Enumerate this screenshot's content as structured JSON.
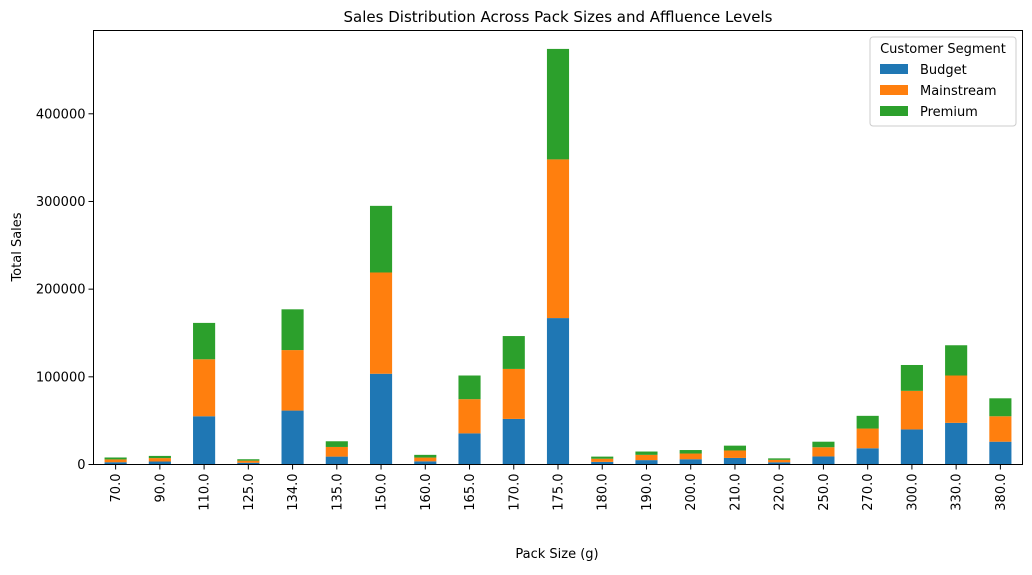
{
  "chart_data": {
    "type": "bar",
    "stacked": true,
    "title": "Sales Distribution Across Pack Sizes and Affluence Levels",
    "xlabel": "Pack Size (g)",
    "ylabel": "Total Sales",
    "ylim": [
      0,
      495000
    ],
    "yticks": [
      "0",
      "100000",
      "200000",
      "300000",
      "400000"
    ],
    "categories": [
      "70.0",
      "90.0",
      "110.0",
      "125.0",
      "134.0",
      "135.0",
      "150.0",
      "160.0",
      "165.0",
      "170.0",
      "175.0",
      "180.0",
      "190.0",
      "200.0",
      "210.0",
      "220.0",
      "250.0",
      "270.0",
      "300.0",
      "330.0",
      "380.0"
    ],
    "series": [
      {
        "name": "Budget",
        "color": "#1f77b4",
        "values": [
          2600,
          3400,
          55000,
          2000,
          61500,
          9000,
          103500,
          3600,
          35500,
          52000,
          167000,
          3000,
          5000,
          6000,
          7500,
          2500,
          9200,
          18500,
          40000,
          47500,
          26000
        ]
      },
      {
        "name": "Mainstream",
        "color": "#ff7f0e",
        "values": [
          3200,
          3900,
          65000,
          2400,
          69000,
          11000,
          115500,
          4300,
          39000,
          57000,
          181000,
          3600,
          6000,
          6500,
          8500,
          2800,
          10500,
          22500,
          44000,
          54000,
          29000
        ]
      },
      {
        "name": "Premium",
        "color": "#2ca02c",
        "values": [
          2200,
          2500,
          41500,
          1600,
          46500,
          6500,
          76000,
          3100,
          27000,
          37500,
          126000,
          2400,
          3800,
          4000,
          5500,
          1700,
          6300,
          14500,
          29500,
          34500,
          20500
        ]
      }
    ],
    "legend": {
      "title": "Customer Segment",
      "position": "top-right"
    },
    "grid": false
  }
}
